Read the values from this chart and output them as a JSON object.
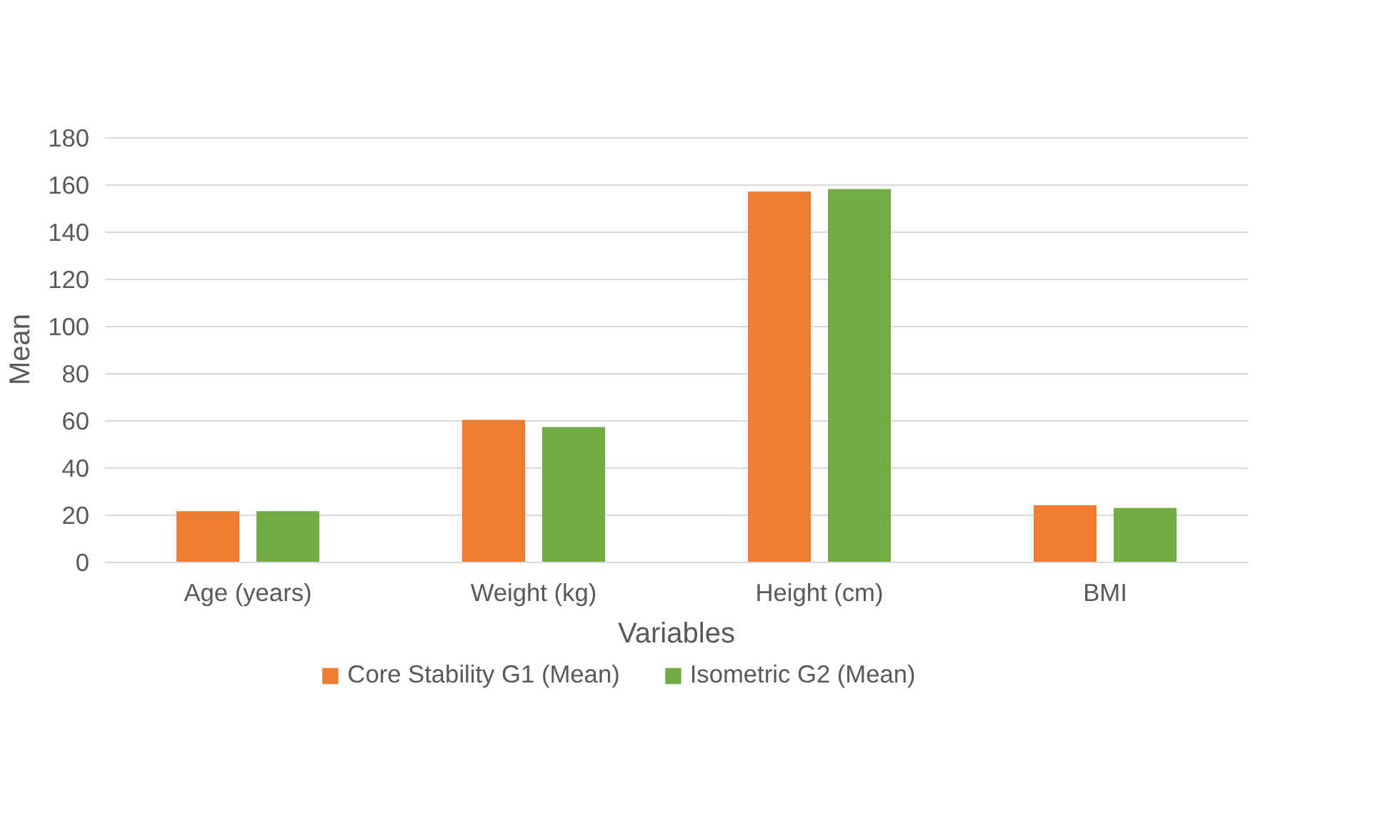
{
  "chart_data": {
    "type": "bar",
    "xlabel": "Variables",
    "ylabel": "Mean",
    "categories": [
      "Age (years)",
      "Weight (kg)",
      "Height (cm)",
      "BMI"
    ],
    "series": [
      {
        "name": "Core Stability G1 (Mean)",
        "color": "#ed7d31",
        "values": [
          21.7,
          60.4,
          157.2,
          24.2
        ]
      },
      {
        "name": "Isometric G2 (Mean)",
        "color": "#70ad47",
        "values": [
          21.7,
          57.4,
          158.3,
          23.1
        ]
      }
    ],
    "ylim": [
      0,
      180
    ],
    "yticks": [
      0,
      20,
      40,
      60,
      80,
      100,
      120,
      140,
      160,
      180
    ],
    "grid": "y",
    "legend": "bottom"
  }
}
